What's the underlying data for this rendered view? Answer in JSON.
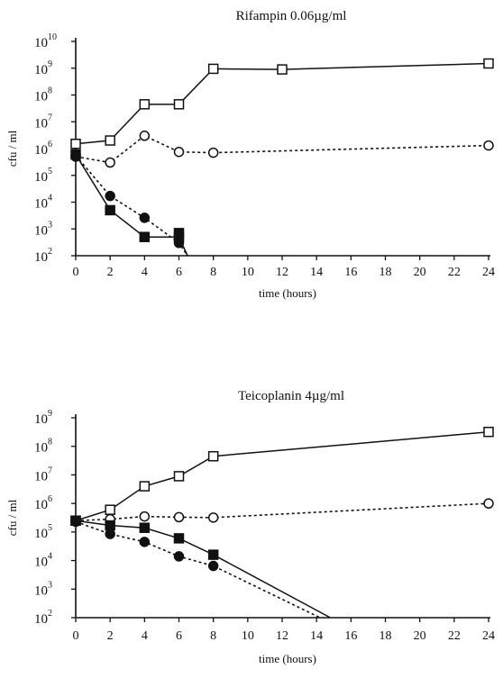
{
  "chart_data": [
    {
      "type": "line",
      "title": "Rifampin 0.06µg/ml",
      "xlabel": "time (hours)",
      "ylabel": "cfu / ml",
      "xlim": [
        0,
        24
      ],
      "ylim_exponent": [
        2,
        10
      ],
      "y_scale": "log",
      "x_ticks": [
        0,
        2,
        4,
        6,
        8,
        10,
        12,
        14,
        16,
        18,
        20,
        22,
        24
      ],
      "y_ticks": [
        {
          "base": "10",
          "exp": "2",
          "value": 100
        },
        {
          "base": "10",
          "exp": "3",
          "value": 1000
        },
        {
          "base": "10",
          "exp": "4",
          "value": 10000
        },
        {
          "base": "10",
          "exp": "5",
          "value": 100000
        },
        {
          "base": "10",
          "exp": "6",
          "value": 1000000
        },
        {
          "base": "10",
          "exp": "7",
          "value": 10000000
        },
        {
          "base": "10",
          "exp": "8",
          "value": 100000000
        },
        {
          "base": "10",
          "exp": "9",
          "value": 1000000000
        },
        {
          "base": "10",
          "exp": "10",
          "value": 10000000000
        }
      ],
      "grid": false,
      "series": [
        {
          "marker": "open-square",
          "line": "solid",
          "points": [
            [
              0,
              1500000.0
            ],
            [
              2,
              2000000.0
            ],
            [
              4,
              45000000.0
            ],
            [
              6,
              45000000.0
            ],
            [
              8,
              950000000.0
            ],
            [
              12,
              900000000.0
            ],
            [
              24,
              1500000000.0
            ]
          ]
        },
        {
          "marker": "open-circle",
          "line": "dashed",
          "points": [
            [
              0,
              500000.0
            ],
            [
              2,
              300000.0
            ],
            [
              4,
              3000000.0
            ],
            [
              6,
              750000.0
            ],
            [
              8,
              700000.0
            ],
            [
              24,
              1300000.0
            ]
          ]
        },
        {
          "marker": "filled-square",
          "line": "solid",
          "points": [
            [
              0,
              600000.0
            ],
            [
              2,
              5000.0
            ],
            [
              4,
              500.0
            ],
            [
              6,
              500.0
            ],
            [
              6.5,
              100.0
            ]
          ]
        },
        {
          "marker": "filled-circle",
          "line": "dashed",
          "points": [
            [
              0,
              550000.0
            ],
            [
              2,
              17000.0
            ],
            [
              4,
              2600.0
            ],
            [
              6,
              300.0
            ],
            [
              6.5,
              100.0
            ]
          ]
        },
        {
          "marker": "filled-square-extra",
          "line": "none",
          "points": [
            [
              6,
              700.0
            ]
          ]
        }
      ]
    },
    {
      "type": "line",
      "title": "Teicoplanin 4µg/ml",
      "xlabel": "time (hours)",
      "ylabel": "cfu / ml",
      "xlim": [
        0,
        24
      ],
      "ylim_exponent": [
        2,
        9
      ],
      "y_scale": "log",
      "x_ticks": [
        0,
        2,
        4,
        6,
        8,
        10,
        12,
        14,
        16,
        18,
        20,
        22,
        24
      ],
      "y_ticks": [
        {
          "base": "10",
          "exp": "2",
          "value": 100
        },
        {
          "base": "10",
          "exp": "3",
          "value": 1000
        },
        {
          "base": "10",
          "exp": "4",
          "value": 10000
        },
        {
          "base": "10",
          "exp": "5",
          "value": 100000
        },
        {
          "base": "10",
          "exp": "6",
          "value": 1000000
        },
        {
          "base": "10",
          "exp": "7",
          "value": 10000000
        },
        {
          "base": "10",
          "exp": "8",
          "value": 100000000
        },
        {
          "base": "10",
          "exp": "9",
          "value": 1000000000
        }
      ],
      "grid": false,
      "series": [
        {
          "marker": "open-square",
          "line": "solid",
          "points": [
            [
              0,
              250000.0
            ],
            [
              2,
              600000.0
            ],
            [
              4,
              4000000.0
            ],
            [
              6,
              9000000.0
            ],
            [
              8,
              45000000.0
            ],
            [
              24,
              320000000.0
            ]
          ]
        },
        {
          "marker": "open-circle",
          "line": "dashed",
          "points": [
            [
              0,
              250000.0
            ],
            [
              2,
              280000.0
            ],
            [
              4,
              350000.0
            ],
            [
              6,
              330000.0
            ],
            [
              8,
              320000.0
            ],
            [
              24,
              1000000.0
            ]
          ]
        },
        {
          "marker": "filled-square",
          "line": "solid",
          "points": [
            [
              0,
              250000.0
            ],
            [
              2,
              170000.0
            ],
            [
              4,
              140000.0
            ],
            [
              6,
              60000.0
            ],
            [
              8,
              16000.0
            ],
            [
              14.8,
              100.0
            ]
          ]
        },
        {
          "marker": "filled-circle",
          "line": "dashed",
          "points": [
            [
              0,
              230000.0
            ],
            [
              2,
              85000.0
            ],
            [
              4,
              45000.0
            ],
            [
              6,
              14000.0
            ],
            [
              8,
              6500.0
            ],
            [
              14.2,
              100.0
            ]
          ]
        }
      ]
    }
  ]
}
